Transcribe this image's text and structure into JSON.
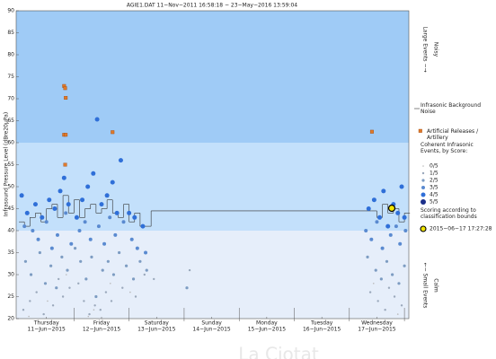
{
  "chart_data": {
    "type": "scatter",
    "title": "AGIE1.DAT   11−Nov−2011 16:58:18   −   23−May−2016 13:59:04",
    "ylabel": "Infrasound Pressure Level  (dBre20µPa)",
    "xlim": [
      -0.05,
      7.08
    ],
    "ylim": [
      20,
      90
    ],
    "yticks": [
      20,
      25,
      30,
      35,
      40,
      45,
      50,
      55,
      60,
      65,
      70,
      75,
      80,
      85,
      90
    ],
    "xticks": [
      {
        "value": 0.5,
        "label": "Thursday"
      },
      {
        "value": 1.5,
        "label": "Friday"
      },
      {
        "value": 2.5,
        "label": "Saturday"
      },
      {
        "value": 3.5,
        "label": "Sunday"
      },
      {
        "value": 4.5,
        "label": "Monday"
      },
      {
        "value": 5.5,
        "label": "Tuesday"
      },
      {
        "value": 6.5,
        "label": "Wednesday"
      }
    ],
    "xtick_dates": [
      "11−Jun−2015",
      "12−Jun−2015",
      "13−Jun−2015",
      "14−Jun−2015",
      "15−Jun−2015",
      "16−Jun−2015",
      "17−Jun−2015"
    ],
    "day_boundaries": [
      1,
      2,
      3,
      4,
      5,
      6,
      7
    ],
    "bands": [
      {
        "from": 60,
        "to": 90,
        "color": "#9fcbf6"
      },
      {
        "from": 40,
        "to": 60,
        "color": "#c3e0fb"
      },
      {
        "from": 20,
        "to": 40,
        "color": "#e6eefa"
      }
    ],
    "noise": {
      "name": "Infrasonic Background Noise",
      "color": "#333333",
      "x": [
        0,
        0.1,
        0.2,
        0.3,
        0.4,
        0.5,
        0.6,
        0.7,
        0.8,
        0.9,
        1.0,
        1.1,
        1.2,
        1.3,
        1.4,
        1.5,
        1.6,
        1.7,
        1.8,
        1.9,
        2.0,
        2.1,
        2.2,
        2.4,
        6.4,
        6.5,
        6.6,
        6.7,
        6.8,
        6.9,
        7.0
      ],
      "y": [
        42,
        41,
        43,
        44,
        42,
        45,
        46,
        43,
        48,
        44,
        47,
        43,
        45,
        46,
        44,
        45,
        47,
        44,
        43,
        46,
        42,
        44,
        41,
        44.5,
        44.5,
        43,
        46,
        44,
        45,
        42,
        44
      ]
    },
    "artillery": {
      "name": "Artificial Releases / Artillery",
      "color": "#e07a2a",
      "x": [
        0.82,
        0.84,
        0.85,
        0.82,
        0.85,
        0.84,
        1.7,
        6.41
      ],
      "y": [
        72.9,
        72.4,
        70.2,
        61.8,
        61.8,
        55,
        62.4,
        62.5
      ]
    },
    "legend_heading": "Coherent Infrasonic Events, by Score:",
    "series": [
      {
        "name": "0/5",
        "color": "#b8b8b8",
        "size": 0.8,
        "x": [
          0.18,
          0.52,
          0.86,
          1.26,
          1.36,
          1.66,
          2.02,
          6.44,
          6.88
        ],
        "y": [
          20.5,
          24,
          30,
          20.5,
          22,
          28,
          26,
          28,
          21
        ]
      },
      {
        "name": "1/5",
        "color": "#9aa8bb",
        "size": 1.2,
        "x": [
          0.08,
          0.2,
          0.32,
          0.45,
          0.62,
          0.72,
          0.8,
          0.92,
          1.08,
          1.18,
          1.28,
          1.38,
          1.48,
          1.58,
          1.68,
          1.88,
          2.12,
          2.28,
          2.45,
          3.1,
          6.38,
          6.52,
          6.65,
          6.72,
          6.82,
          6.95
        ],
        "y": [
          22,
          24,
          26,
          21,
          23,
          29,
          25,
          27,
          28,
          24,
          21,
          23,
          22,
          26,
          24,
          27,
          25,
          30,
          29,
          31,
          26,
          24,
          22,
          27,
          25,
          23
        ]
      },
      {
        "name": "2/5",
        "color": "#7d9cc2",
        "size": 1.6,
        "x": [
          0.12,
          0.22,
          0.38,
          0.48,
          0.58,
          0.68,
          0.78,
          0.88,
          1.02,
          1.12,
          1.22,
          1.32,
          1.4,
          1.52,
          1.62,
          1.72,
          1.82,
          1.95,
          2.08,
          2.2,
          2.32,
          3.05,
          6.33,
          6.48,
          6.58,
          6.68,
          6.78,
          6.9,
          7.0
        ],
        "y": [
          33,
          30,
          35,
          28,
          32,
          27,
          34,
          31,
          36,
          33,
          29,
          34,
          25,
          31,
          33,
          30,
          35,
          32,
          29,
          33,
          31,
          27,
          34,
          31,
          29,
          33,
          30,
          28,
          32
        ]
      },
      {
        "name": "3/5",
        "color": "#5a8ad0",
        "size": 2.0,
        "x": [
          0.1,
          0.25,
          0.35,
          0.5,
          0.6,
          0.7,
          0.85,
          0.95,
          1.1,
          1.2,
          1.3,
          1.45,
          1.55,
          1.65,
          1.75,
          1.9,
          2.05,
          2.15,
          2.3,
          6.3,
          6.4,
          6.5,
          6.6,
          6.75,
          6.85,
          6.92,
          7.02
        ],
        "y": [
          41,
          40,
          38,
          42,
          36,
          39,
          44,
          37,
          40,
          42,
          38,
          41,
          37,
          43,
          39,
          42,
          38,
          36,
          35,
          40,
          38,
          42,
          36,
          39,
          41,
          37,
          40
        ]
      },
      {
        "name": "4/5",
        "color": "#2f6fd8",
        "size": 2.5,
        "x": [
          0.05,
          0.15,
          0.3,
          0.42,
          0.55,
          0.65,
          0.75,
          0.82,
          0.9,
          1.05,
          1.15,
          1.25,
          1.35,
          1.42,
          1.5,
          1.6,
          1.7,
          1.78,
          1.85,
          2.0,
          2.1,
          2.25,
          6.35,
          6.45,
          6.55,
          6.62,
          6.7,
          6.8,
          6.88,
          6.95,
          7.0
        ],
        "y": [
          48,
          44,
          46,
          43,
          47,
          45,
          49,
          52,
          46,
          43,
          47,
          50,
          53,
          65.3,
          46,
          48,
          51,
          44,
          56,
          44,
          43,
          41,
          45,
          47,
          43,
          49,
          41,
          46,
          44,
          50,
          43
        ]
      },
      {
        "name": "5/5",
        "color": "#1b2f8a",
        "size": 3.0,
        "x": [],
        "y": []
      }
    ],
    "legend_note": "Scoring according to classification bounds",
    "highlight": {
      "name": "2015−06−17 17:27:28",
      "color": "#f2e600",
      "x": 6.77,
      "y": 45.1
    },
    "side_labels": [
      "Large Events −→",
      "Noisy",
      "←− Small Events",
      "Calm"
    ],
    "watermark": "La Ciotat"
  }
}
